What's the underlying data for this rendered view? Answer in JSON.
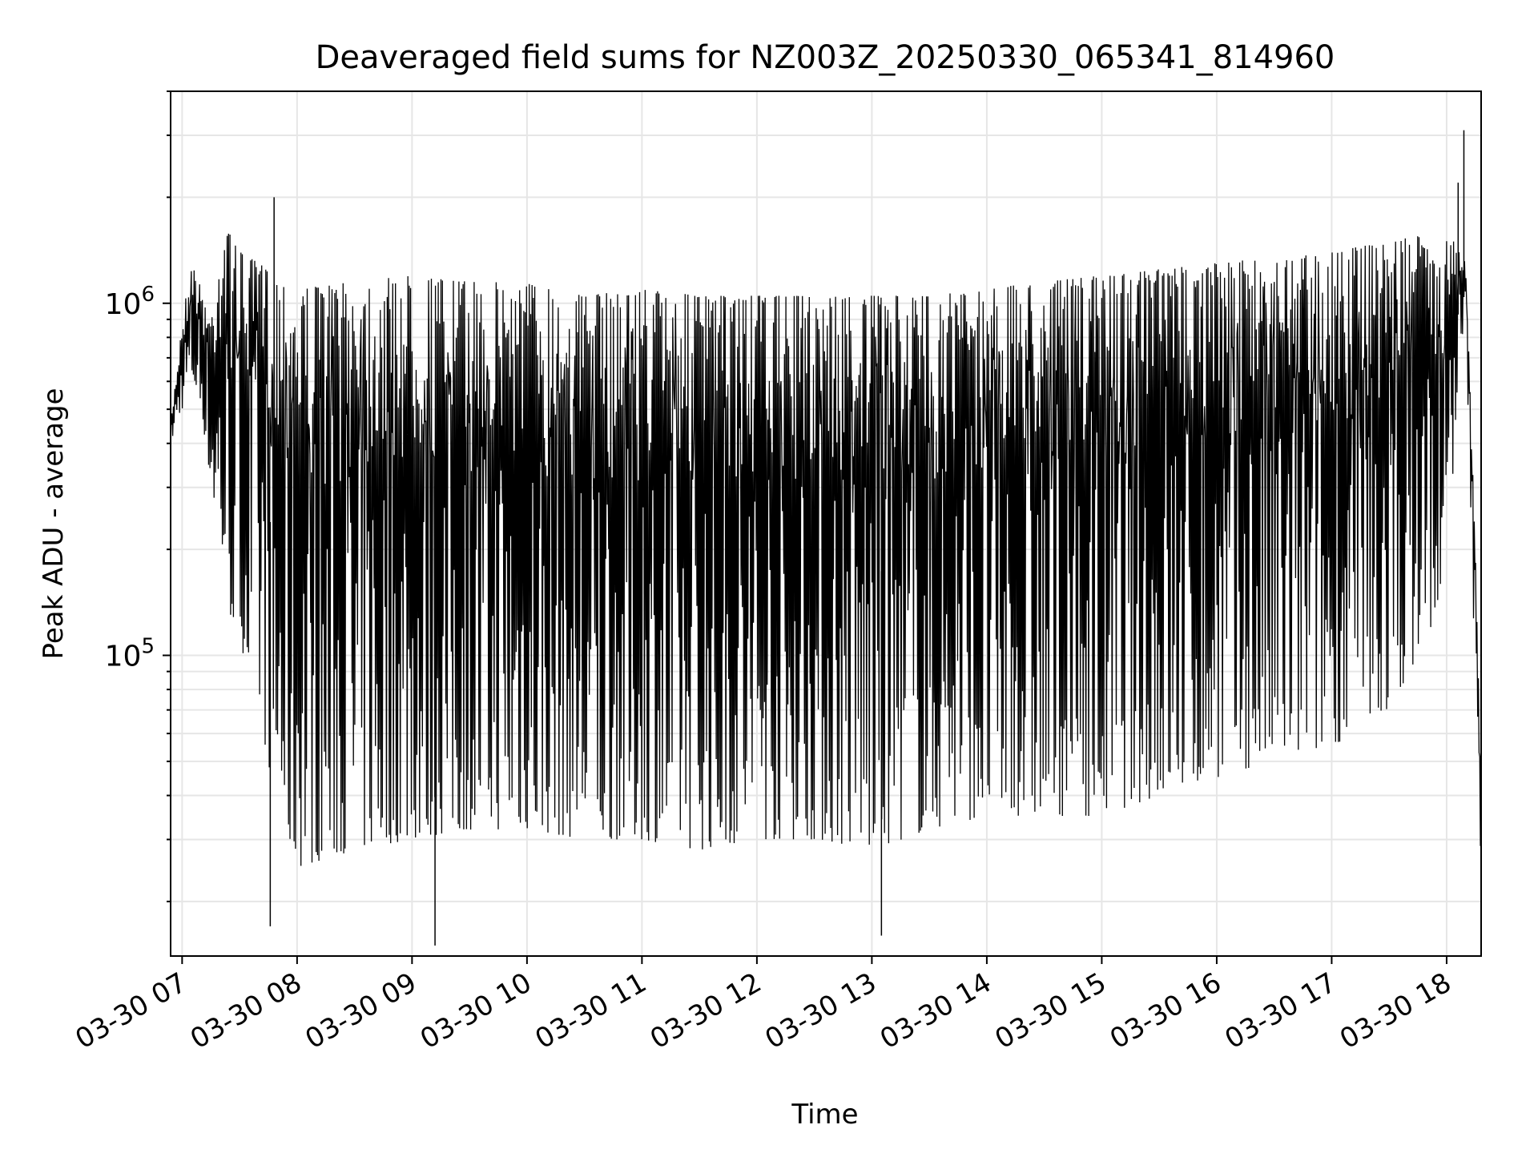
{
  "chart_data": {
    "type": "line",
    "title": "Deaveraged field sums for NZ003Z_20250330_065341_814960",
    "xlabel": "Time",
    "ylabel": "Peak ADU - average",
    "yscale": "log",
    "ylim": [
      14000,
      4000000
    ],
    "xlim": [
      "2025-03-30 06:54",
      "2025-03-30 18:18"
    ],
    "x_ticks": [
      {
        "label": "03-30 07",
        "time": "2025-03-30 07:00"
      },
      {
        "label": "03-30 08",
        "time": "2025-03-30 08:00"
      },
      {
        "label": "03-30 09",
        "time": "2025-03-30 09:00"
      },
      {
        "label": "03-30 10",
        "time": "2025-03-30 10:00"
      },
      {
        "label": "03-30 11",
        "time": "2025-03-30 11:00"
      },
      {
        "label": "03-30 12",
        "time": "2025-03-30 12:00"
      },
      {
        "label": "03-30 13",
        "time": "2025-03-30 13:00"
      },
      {
        "label": "03-30 14",
        "time": "2025-03-30 14:00"
      },
      {
        "label": "03-30 15",
        "time": "2025-03-30 15:00"
      },
      {
        "label": "03-30 16",
        "time": "2025-03-30 16:00"
      },
      {
        "label": "03-30 17",
        "time": "2025-03-30 17:00"
      },
      {
        "label": "03-30 18",
        "time": "2025-03-30 18:00"
      }
    ],
    "y_ticks": [
      {
        "base": "10",
        "exp": "5",
        "value": 100000
      },
      {
        "base": "10",
        "exp": "6",
        "value": 1000000
      }
    ],
    "grid": true,
    "line_color": "#000000",
    "series": [
      {
        "x": [
          "2025-03-30 06:54",
          "2025-03-30 07:00",
          "2025-03-30 07:05",
          "2025-03-30 07:10",
          "2025-03-30 07:15",
          "2025-03-30 07:20",
          "2025-03-30 07:25",
          "2025-03-30 07:30",
          "2025-03-30 07:40",
          "2025-03-30 07:50",
          "2025-03-30 08:00",
          "2025-03-30 08:30",
          "2025-03-30 09:00",
          "2025-03-30 09:30",
          "2025-03-30 10:00",
          "2025-03-30 10:30",
          "2025-03-30 11:00",
          "2025-03-30 11:30",
          "2025-03-30 12:00",
          "2025-03-30 12:30",
          "2025-03-30 13:00",
          "2025-03-30 13:30",
          "2025-03-30 14:00",
          "2025-03-30 14:30",
          "2025-03-30 15:00",
          "2025-03-30 15:30",
          "2025-03-30 16:00",
          "2025-03-30 16:30",
          "2025-03-30 17:00",
          "2025-03-30 17:30",
          "2025-03-30 17:45",
          "2025-03-30 18:00",
          "2025-03-30 18:05",
          "2025-03-30 18:10",
          "2025-03-30 18:15",
          "2025-03-30 18:18"
        ],
        "upper": [
          450000,
          900000,
          1300000,
          1100000,
          900000,
          1500000,
          1600000,
          1400000,
          1300000,
          1200000,
          1100000,
          1150000,
          1200000,
          1150000,
          1150000,
          1050000,
          1100000,
          1050000,
          1050000,
          1050000,
          1050000,
          1050000,
          1100000,
          1150000,
          1200000,
          1250000,
          1300000,
          1350000,
          1400000,
          1500000,
          1550000,
          1500000,
          1600000,
          1300000,
          200000,
          40000
        ],
        "lower": [
          400000,
          500000,
          600000,
          500000,
          300000,
          200000,
          130000,
          110000,
          70000,
          35000,
          25000,
          28000,
          30000,
          32000,
          32000,
          30000,
          30000,
          28000,
          30000,
          30000,
          28000,
          32000,
          35000,
          35000,
          35000,
          40000,
          45000,
          50000,
          55000,
          70000,
          100000,
          150000,
          500000,
          900000,
          80000,
          25000
        ],
        "spikes": [
          {
            "x": "2025-03-30 07:48",
            "y": 2000000
          },
          {
            "x": "2025-03-30 07:46",
            "y": 17000
          },
          {
            "x": "2025-03-30 09:12",
            "y": 15000
          },
          {
            "x": "2025-03-30 13:05",
            "y": 16000
          },
          {
            "x": "2025-03-30 18:09",
            "y": 3100000
          },
          {
            "x": "2025-03-30 18:06",
            "y": 2200000
          }
        ]
      }
    ]
  }
}
